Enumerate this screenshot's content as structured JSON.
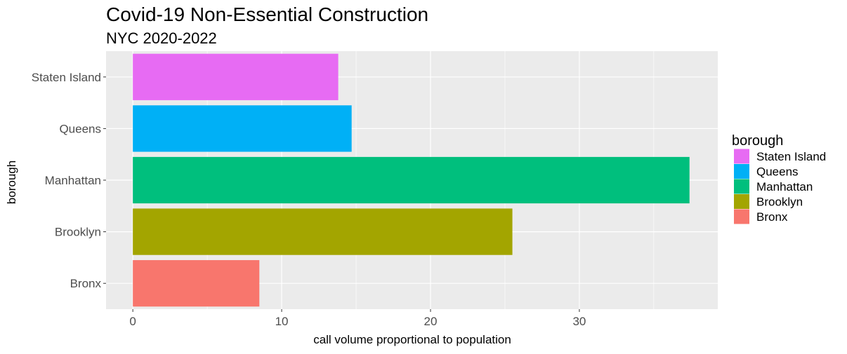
{
  "chart_data": {
    "type": "bar",
    "orientation": "horizontal",
    "title": "Covid-19 Non-Essential Construction",
    "subtitle": "NYC 2020-2022",
    "xlabel": "call volume proportional to population",
    "ylabel": "borough",
    "xlim": [
      -1.8,
      39.3
    ],
    "xticks": [
      0,
      10,
      20,
      30
    ],
    "categories": [
      "Bronx",
      "Brooklyn",
      "Manhattan",
      "Queens",
      "Staten Island"
    ],
    "values": [
      8.5,
      25.5,
      37.4,
      14.7,
      13.8
    ],
    "colors": [
      "#F8766D",
      "#A3A500",
      "#00BF7D",
      "#00B0F6",
      "#E76BF3"
    ],
    "grid": true,
    "panel_background": "#EBEBEB",
    "grid_color": "#FFFFFF",
    "legend": {
      "title": "borough",
      "position": "right",
      "entries": [
        "Staten Island",
        "Queens",
        "Manhattan",
        "Brooklyn",
        "Bronx"
      ]
    }
  }
}
